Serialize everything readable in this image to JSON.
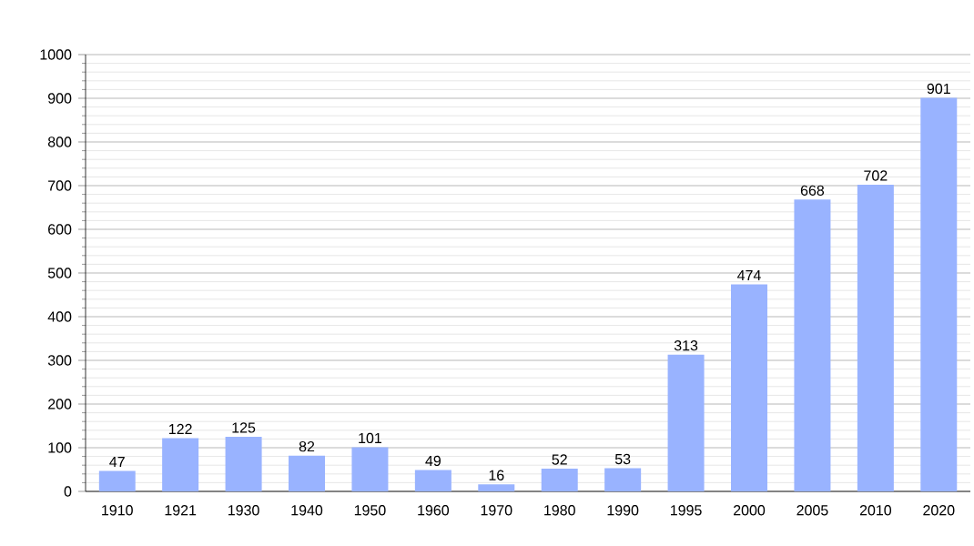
{
  "chart_data": {
    "type": "bar",
    "categories": [
      "1910",
      "1921",
      "1930",
      "1940",
      "1950",
      "1960",
      "1970",
      "1980",
      "1990",
      "1995",
      "2000",
      "2005",
      "2010",
      "2020"
    ],
    "values": [
      47,
      122,
      125,
      82,
      101,
      49,
      16,
      52,
      53,
      313,
      474,
      668,
      702,
      901
    ],
    "color": "#99b3ff",
    "ylim": [
      0,
      1000
    ],
    "yticks": [
      0,
      100,
      200,
      300,
      400,
      500,
      600,
      700,
      800,
      900,
      1000
    ],
    "grid": "y",
    "data_labels": true
  }
}
